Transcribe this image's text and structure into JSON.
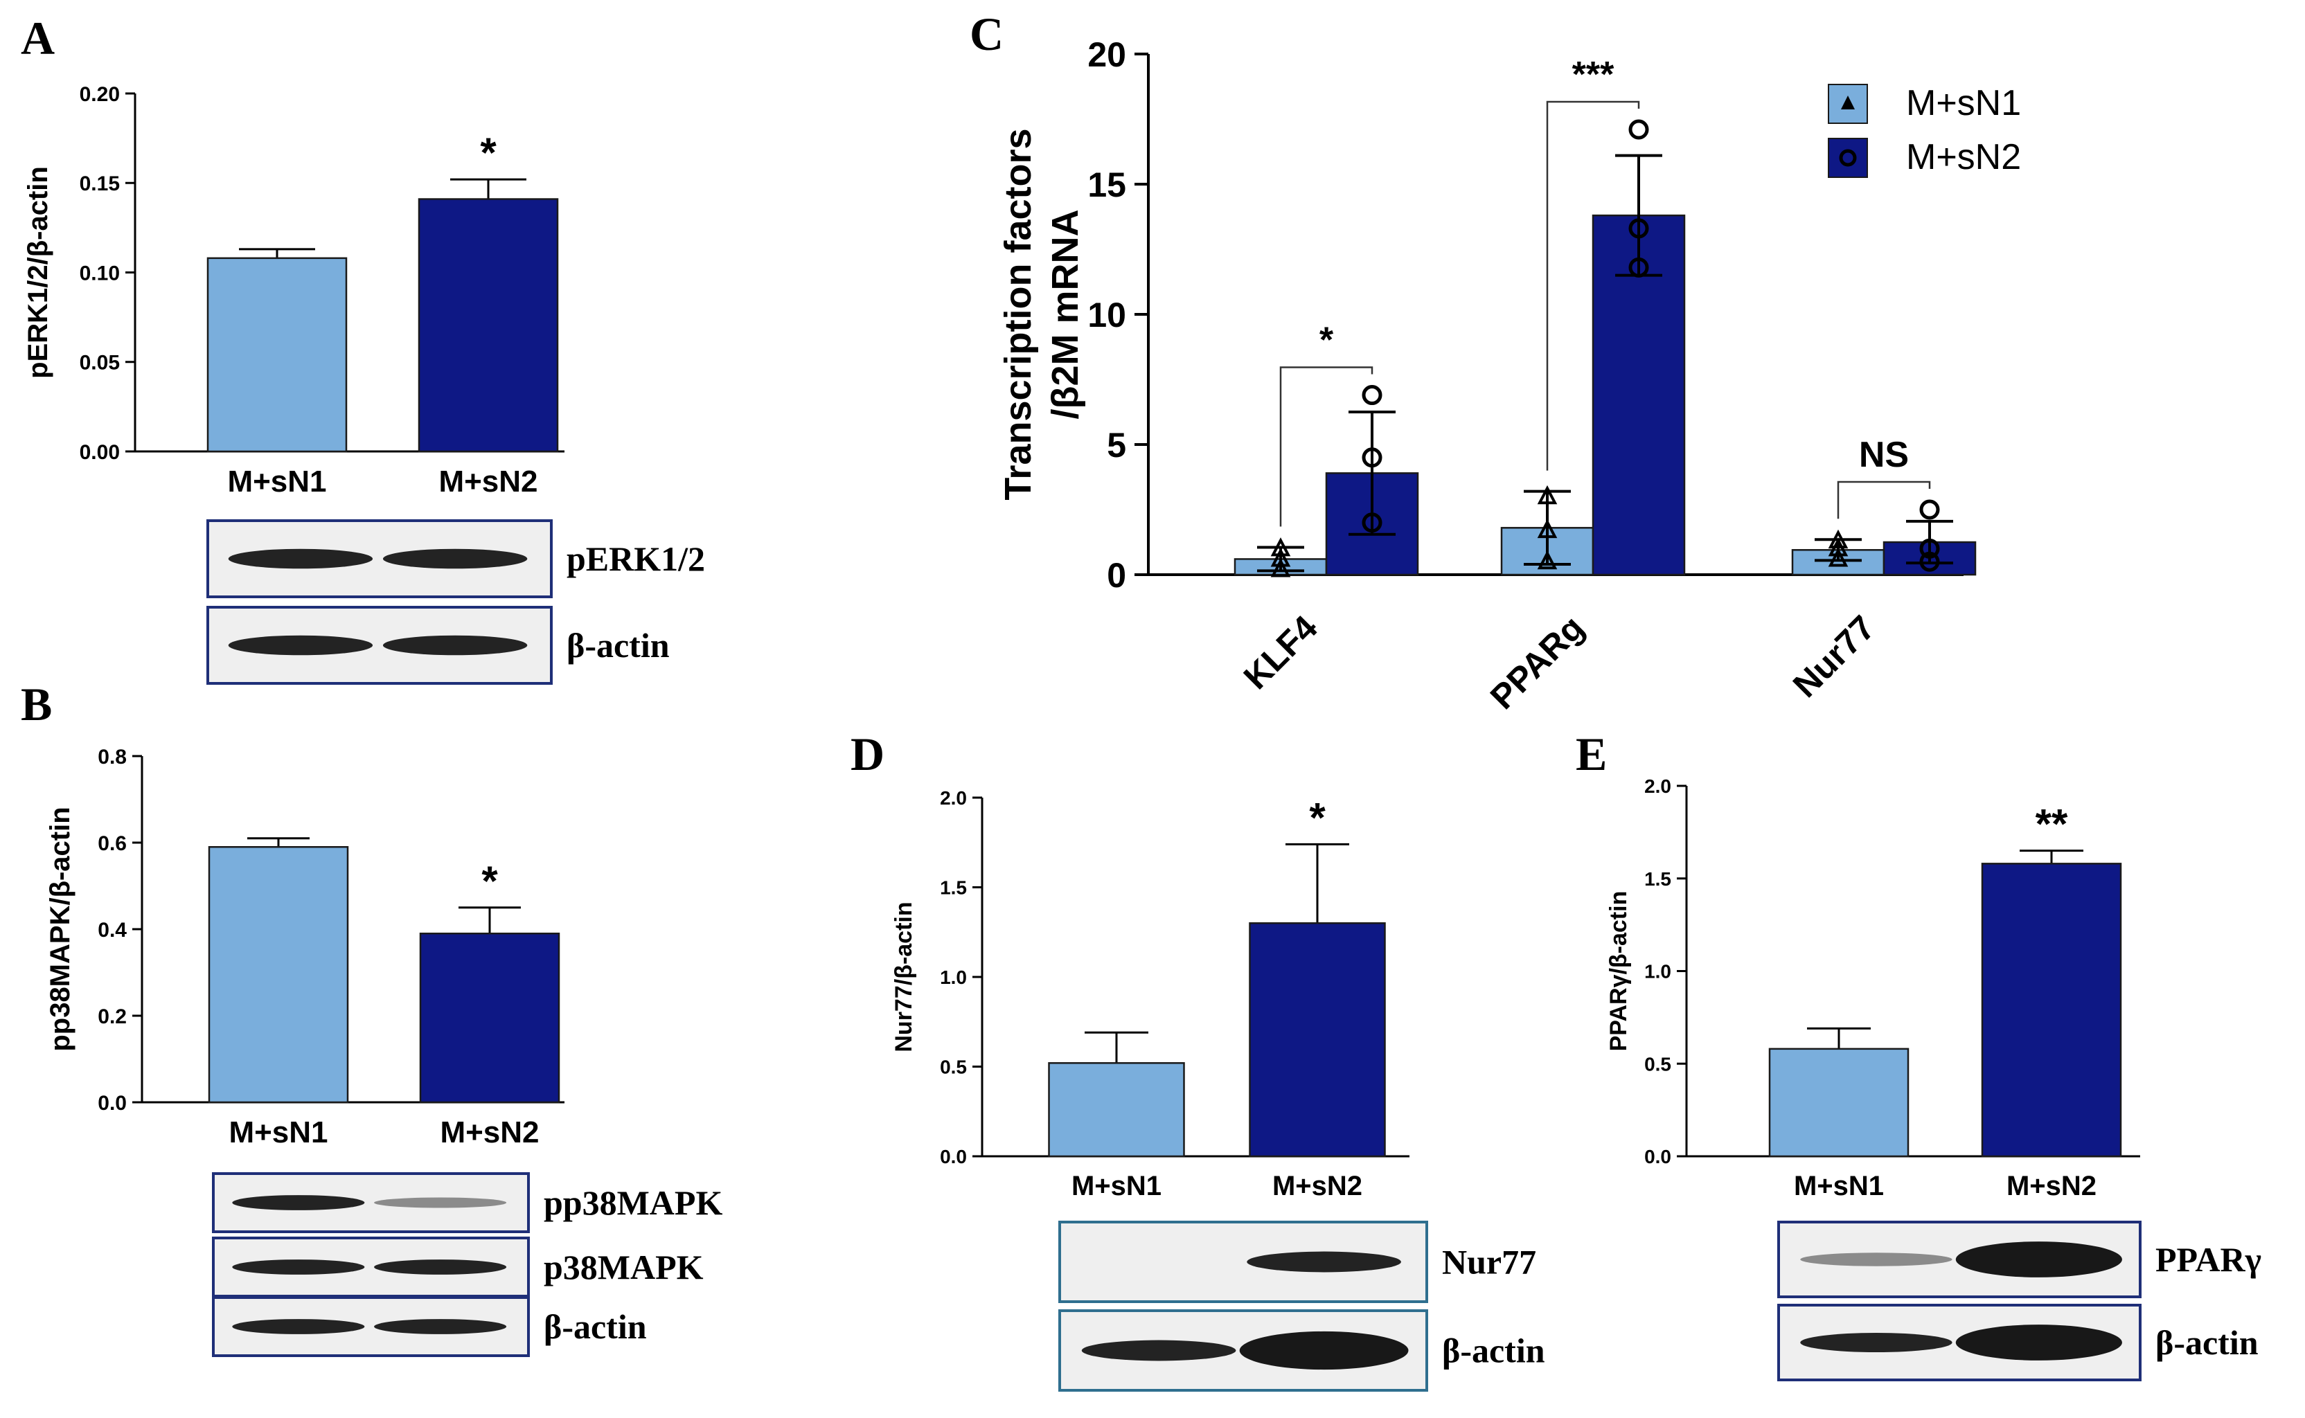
{
  "colors": {
    "light_bar": "#7aaedc",
    "dark_bar": "#0e1885",
    "axis": "#000000",
    "blot_frame_blue": "#1f2f78",
    "blot_frame_teal": "#2f6f8f",
    "blot_bg": "#efefef",
    "band": "#111111"
  },
  "chart_data": [
    {
      "panel": "A",
      "type": "bar",
      "categories": [
        "M+sN1",
        "M+sN2"
      ],
      "values": [
        0.108,
        0.141
      ],
      "errors": [
        0.005,
        0.011
      ],
      "ylabel": "pERK1/2/β-actin",
      "ylim": [
        0,
        0.2
      ],
      "yticks": [
        "0.00",
        "0.05",
        "0.10",
        "0.15",
        "0.20"
      ],
      "significance": [
        "",
        "*"
      ],
      "blots": [
        {
          "label": "pERK1/2",
          "bands": [
            "dark",
            "dark"
          ]
        },
        {
          "label": "β-actin",
          "bands": [
            "dark",
            "dark"
          ]
        }
      ]
    },
    {
      "panel": "B",
      "type": "bar",
      "categories": [
        "M+sN1",
        "M+sN2"
      ],
      "values": [
        0.59,
        0.39
      ],
      "errors": [
        0.02,
        0.06
      ],
      "ylabel": "pp38MAPK/β-actin",
      "ylim": [
        0,
        0.8
      ],
      "yticks": [
        "0.0",
        "0.2",
        "0.4",
        "0.6",
        "0.8"
      ],
      "significance": [
        "",
        "*"
      ],
      "blots": [
        {
          "label": "pp38MAPK",
          "bands": [
            "dark",
            "faint"
          ]
        },
        {
          "label": "p38MAPK",
          "bands": [
            "dark",
            "dark"
          ]
        },
        {
          "label": "β-actin",
          "bands": [
            "dark",
            "dark"
          ]
        }
      ]
    },
    {
      "panel": "C",
      "type": "bar",
      "categories": [
        "KLF4",
        "PPARg",
        "Nur77"
      ],
      "ylabel_lines": [
        "Transcription factors",
        "/β2M mRNA"
      ],
      "ylim": [
        0,
        20
      ],
      "yticks": [
        "0",
        "5",
        "10",
        "15",
        "20"
      ],
      "series": [
        {
          "name": "M+sN1",
          "values": [
            0.6,
            1.8,
            0.95
          ],
          "errors": [
            0.45,
            1.4,
            0.4
          ],
          "points": [
            [
              0.2,
              0.6,
              1.0
            ],
            [
              0.5,
              1.7,
              3.0
            ],
            [
              0.6,
              1.0,
              1.3
            ]
          ]
        },
        {
          "name": "M+sN2",
          "values": [
            3.9,
            13.8,
            1.25
          ],
          "errors": [
            2.35,
            2.3,
            0.8
          ],
          "points": [
            [
              2.0,
              4.5,
              6.9
            ],
            [
              11.8,
              13.3,
              17.1
            ],
            [
              0.5,
              1.0,
              2.5
            ]
          ]
        }
      ],
      "significance": [
        "*",
        "***",
        "NS"
      ],
      "legend": [
        "M+sN1",
        "M+sN2"
      ]
    },
    {
      "panel": "D",
      "type": "bar",
      "categories": [
        "M+sN1",
        "M+sN2"
      ],
      "values": [
        0.52,
        1.3
      ],
      "errors": [
        0.17,
        0.44
      ],
      "ylabel": "Nur77/β-actin",
      "ylim": [
        0,
        2
      ],
      "yticks": [
        "0.0",
        "0.5",
        "1.0",
        "1.5",
        "2.0"
      ],
      "significance": [
        "",
        "*"
      ],
      "blots": [
        {
          "label": "Nur77",
          "bands": [
            "none",
            "dark"
          ]
        },
        {
          "label": "β-actin",
          "bands": [
            "dark",
            "heavy"
          ]
        }
      ]
    },
    {
      "panel": "E",
      "type": "bar",
      "categories": [
        "M+sN1",
        "M+sN2"
      ],
      "values": [
        0.58,
        1.58
      ],
      "errors": [
        0.11,
        0.07
      ],
      "ylabel": "PPARγ/β-actin",
      "ylim": [
        0,
        2
      ],
      "yticks": [
        "0.0",
        "0.5",
        "1.0",
        "1.5",
        "2.0"
      ],
      "significance": [
        "",
        "**"
      ],
      "blots": [
        {
          "label": "PPARγ",
          "bands": [
            "faint",
            "heavy"
          ]
        },
        {
          "label": "β-actin",
          "bands": [
            "dark",
            "heavy"
          ]
        }
      ]
    }
  ]
}
